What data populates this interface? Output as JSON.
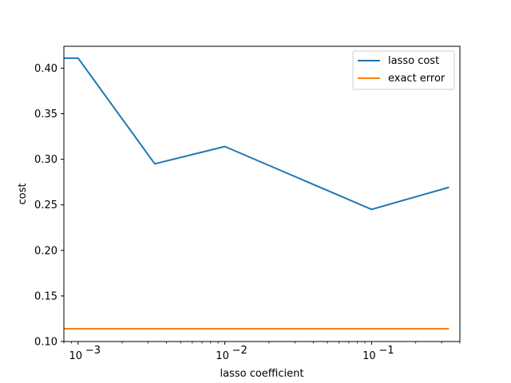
{
  "chart_data": {
    "type": "line",
    "xscale": "log",
    "xlabel": "lasso coefficient",
    "ylabel": "cost",
    "xlim": [
      0.0008,
      0.4
    ],
    "ylim": [
      0.1,
      0.424
    ],
    "x_ticks": [
      {
        "value": 0.001,
        "base": "10",
        "exp": "−3"
      },
      {
        "value": 0.01,
        "base": "10",
        "exp": "−2"
      },
      {
        "value": 0.1,
        "base": "10",
        "exp": "−1"
      }
    ],
    "y_ticks": [
      "0.10",
      "0.15",
      "0.20",
      "0.25",
      "0.30",
      "0.35",
      "0.40"
    ],
    "grid": false,
    "legend_position": "upper right",
    "series": [
      {
        "name": "lasso cost",
        "color": "#1f77b4",
        "x": [
          0.0003,
          0.001,
          0.00333,
          0.01,
          0.1,
          0.333
        ],
        "y": [
          0.411,
          0.411,
          0.295,
          0.314,
          0.245,
          0.269
        ]
      },
      {
        "name": "exact error",
        "color": "#ff7f0e",
        "x": [
          0.0003,
          0.333
        ],
        "y": [
          0.114,
          0.114
        ]
      }
    ]
  }
}
